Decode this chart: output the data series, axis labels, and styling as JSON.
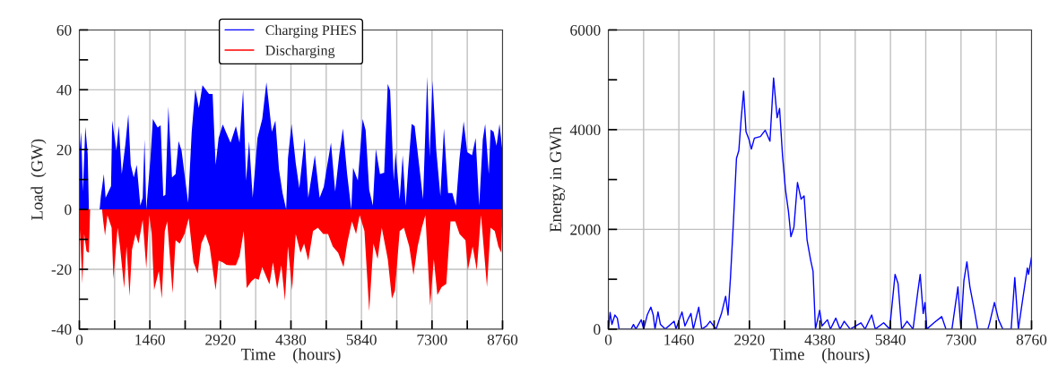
{
  "chart_data": [
    {
      "type": "area",
      "xlabel": "Time    (hours)",
      "ylabel": "Load  (GW)",
      "xlim": [
        0,
        8760
      ],
      "ylim": [
        -40,
        60
      ],
      "xticks": [
        0,
        {
          "value": 730,
          "label": null
        },
        1460,
        {
          "value": 2190,
          "label": null
        },
        2920,
        {
          "value": 3650,
          "label": null
        },
        4380,
        {
          "value": 5110,
          "label": null
        },
        5840,
        {
          "value": 6570,
          "label": null
        },
        7300,
        {
          "value": 8030,
          "label": null
        },
        8760
      ],
      "yticks": [
        -40,
        {
          "value": -30,
          "label": null
        },
        -20,
        {
          "value": -10,
          "label": null
        },
        0,
        {
          "value": 10,
          "label": null
        },
        20,
        {
          "value": 30,
          "label": null
        },
        40,
        {
          "value": 50,
          "label": null
        },
        60
      ],
      "grid": true,
      "legend": "top",
      "series": [
        {
          "name": "Charging PHES",
          "color": "#0000ff",
          "x": [
            0,
            37,
            74,
            124,
            173,
            198,
            420,
            445,
            507,
            544,
            656,
            680,
            767,
            817,
            878,
            953,
            1014,
            1064,
            1126,
            1188,
            1262,
            1311,
            1349,
            1386,
            1472,
            1522,
            1621,
            1683,
            1738,
            1782,
            1843,
            1918,
            1992,
            2054,
            2116,
            2190,
            2252,
            2326,
            2400,
            2474,
            2549,
            2610,
            2685,
            2759,
            2821,
            2883,
            2969,
            3044,
            3130,
            3241,
            3316,
            3390,
            3452,
            3514,
            3588,
            3687,
            3786,
            3872,
            3910,
            3984,
            4058,
            4132,
            4206,
            4281,
            4318,
            4392,
            4479,
            4553,
            4664,
            4738,
            4875,
            4974,
            5060,
            5122,
            5209,
            5295,
            5382,
            5456,
            5543,
            5629,
            5666,
            5765,
            5864,
            5926,
            6000,
            6075,
            6137,
            6223,
            6310,
            6384,
            6433,
            6508,
            6545,
            6631,
            6693,
            6755,
            6805,
            6879,
            6941,
            7040,
            7114,
            7201,
            7250,
            7312,
            7386,
            7473,
            7547,
            7633,
            7720,
            7794,
            7869,
            7955,
            8029,
            8128,
            8203,
            8277,
            8351,
            8401,
            8475,
            8512,
            8574,
            8636,
            8697,
            8760
          ],
          "values": [
            18.1,
            26,
            6,
            27.6,
            18.6,
            0,
            0,
            4.4,
            11.8,
            3.9,
            7.8,
            29.7,
            19.7,
            28,
            11.8,
            21.8,
            31.8,
            14.9,
            10.7,
            14.9,
            1.3,
            3.9,
            23.4,
            0,
            17.1,
            30.2,
            27.4,
            28.1,
            4.4,
            4.9,
            34.4,
            10.7,
            11.8,
            22.8,
            19.7,
            10.2,
            2.3,
            26,
            40.2,
            33.9,
            41.5,
            40.2,
            38.6,
            38.6,
            14.9,
            23.9,
            28.4,
            25.5,
            22.3,
            27.8,
            22.3,
            40.2,
            9.7,
            22.8,
            3.9,
            23.9,
            30.2,
            42.5,
            37.1,
            26,
            29.7,
            13.4,
            5.5,
            0,
            17.1,
            28.6,
            15.5,
            7.1,
            23.9,
            3.9,
            18.1,
            3.9,
            7.6,
            13.9,
            22.3,
            6,
            18.6,
            27.1,
            11.8,
            0,
            13.9,
            9.7,
            30.2,
            26.5,
            6.5,
            1.3,
            20.2,
            11.8,
            12.3,
            42,
            39.7,
            9.7,
            19.2,
            3.4,
            18.1,
            1.3,
            13.4,
            28.6,
            27.8,
            13.9,
            3.4,
            44.4,
            17.6,
            43.1,
            20.2,
            4.4,
            27.1,
            5.5,
            5.5,
            1.3,
            17.1,
            29.4,
            19.2,
            18.1,
            23.9,
            1.3,
            23.4,
            28.6,
            11.8,
            26.7,
            26,
            21.3,
            28.6,
            19.2
          ]
        },
        {
          "name": "Discharging",
          "color": "#ff0000",
          "x": [
            0,
            25,
            62,
            99,
            148,
            198,
            223,
            470,
            495,
            532,
            581,
            668,
            705,
            792,
            841,
            928,
            977,
            1039,
            1089,
            1163,
            1225,
            1311,
            1386,
            1448,
            1497,
            1547,
            1645,
            1707,
            1769,
            1819,
            1930,
            1992,
            2078,
            2178,
            2264,
            2363,
            2450,
            2524,
            2610,
            2697,
            2821,
            2883,
            2969,
            3044,
            3130,
            3241,
            3316,
            3403,
            3464,
            3563,
            3637,
            3712,
            3786,
            3934,
            4008,
            4095,
            4182,
            4256,
            4318,
            4404,
            4479,
            4578,
            4652,
            4738,
            4837,
            4937,
            5048,
            5147,
            5246,
            5357,
            5468,
            5543,
            5642,
            5728,
            5802,
            5901,
            6000,
            6087,
            6174,
            6260,
            6384,
            6470,
            6532,
            6631,
            6718,
            6829,
            6916,
            7003,
            7089,
            7163,
            7262,
            7337,
            7411,
            7497,
            7596,
            7683,
            7782,
            7869,
            7992,
            8042,
            8141,
            8227,
            8314,
            8438,
            8512,
            8599,
            8673,
            8735,
            8760
          ],
          "values": [
            -4,
            -11.4,
            -24.8,
            -8.2,
            -14,
            -14.5,
            0,
            0,
            -4,
            -8.7,
            -1.9,
            -6.1,
            -23.2,
            -6.1,
            -12.4,
            -26.3,
            -12.4,
            -29,
            -13.5,
            -8.2,
            -11.4,
            -3.5,
            -19.8,
            -1.9,
            -8.2,
            -27,
            -20.6,
            -29.8,
            -7.2,
            -4,
            -28,
            -10.3,
            -11.4,
            -8.2,
            -3,
            -17.7,
            -21.4,
            -11.4,
            -8.2,
            -12.4,
            -27,
            -17.1,
            -17.7,
            -18.5,
            -18.7,
            -18.7,
            -15.6,
            -7.2,
            -26.3,
            -24,
            -23,
            -23.5,
            -19.3,
            -25,
            -17.7,
            -26.6,
            -18.7,
            -30.5,
            -12.4,
            -27,
            -8.2,
            -14.5,
            -11.4,
            -17.1,
            -7.2,
            -6.1,
            -8.2,
            -8.2,
            -12.4,
            -14.5,
            -19.3,
            -11.4,
            -4,
            -8.2,
            -1.9,
            -7.2,
            -34,
            -11.4,
            -16.6,
            -6.1,
            -16.6,
            -29.8,
            -27.2,
            -7.2,
            -6.1,
            -12.4,
            -21.9,
            -12.4,
            -6.1,
            -1.9,
            -32.2,
            -16.6,
            -28.6,
            -26,
            -24.9,
            -4,
            -4,
            -8.2,
            -10.3,
            -20.3,
            -12.4,
            -20.3,
            -1.9,
            -25.9,
            -6.1,
            -7.2,
            -12.4,
            -14.5,
            0
          ]
        }
      ]
    },
    {
      "type": "line",
      "xlabel": "Time    (hours)",
      "ylabel": "Energy in GWh",
      "xlim": [
        0,
        8760
      ],
      "ylim": [
        0,
        6000
      ],
      "xticks": [
        0,
        {
          "value": 730,
          "label": null
        },
        1460,
        {
          "value": 2190,
          "label": null
        },
        2920,
        {
          "value": 3650,
          "label": null
        },
        4380,
        {
          "value": 5110,
          "label": null
        },
        5840,
        {
          "value": 6570,
          "label": null
        },
        7300,
        {
          "value": 8030,
          "label": null
        },
        8760
      ],
      "yticks": [
        0,
        {
          "value": 1000,
          "label": null
        },
        2000,
        {
          "value": 3000,
          "label": null
        },
        4000,
        {
          "value": 5000,
          "label": null
        },
        6000
      ],
      "grid": true,
      "series": [
        {
          "color": "#0000ff",
          "x": [
            0,
            37,
            74,
            136,
            186,
            223,
            471,
            520,
            570,
            681,
            731,
            805,
            880,
            929,
            966,
            1028,
            1078,
            1177,
            1363,
            1400,
            1524,
            1586,
            1660,
            1710,
            1759,
            1871,
            1933,
            2032,
            2106,
            2230,
            2342,
            2428,
            2478,
            2528,
            2590,
            2652,
            2701,
            2751,
            2800,
            2850,
            2912,
            2961,
            3023,
            3147,
            3246,
            3345,
            3420,
            3494,
            3544,
            3605,
            3667,
            3729,
            3779,
            3841,
            3915,
            3990,
            4052,
            4113,
            4188,
            4237,
            4287,
            4374,
            4423,
            4535,
            4597,
            4708,
            4795,
            4882,
            5006,
            5229,
            5315,
            5452,
            5526,
            5699,
            5823,
            5935,
            5997,
            6071,
            6183,
            6307,
            6406,
            6455,
            6517,
            6554,
            6592,
            6740,
            6901,
            6988,
            7112,
            7236,
            7298,
            7360,
            7422,
            7484,
            7583,
            7645,
            7855,
            7892,
            7992,
            8078,
            8165,
            8338,
            8413,
            8487,
            8586,
            8673,
            8698,
            8760
          ],
          "values": [
            0,
            333,
            94,
            283,
            220,
            0,
            0,
            94,
            0,
            188,
            0,
            283,
            440,
            283,
            0,
            345,
            94,
            0,
            157,
            0,
            345,
            63,
            220,
            314,
            0,
            440,
            0,
            63,
            157,
            0,
            314,
            659,
            283,
            1036,
            2167,
            3423,
            3580,
            4239,
            4773,
            3956,
            3800,
            3611,
            3831,
            3862,
            3988,
            3768,
            5037,
            4239,
            4427,
            3485,
            2795,
            2355,
            1853,
            2041,
            2939,
            2606,
            2669,
            1790,
            1382,
            1162,
            0,
            377,
            63,
            188,
            0,
            220,
            0,
            157,
            0,
            126,
            0,
            283,
            0,
            126,
            0,
            1099,
            911,
            0,
            157,
            0,
            754,
            1099,
            314,
            534,
            0,
            126,
            251,
            0,
            0,
            848,
            0,
            973,
            1350,
            848,
            345,
            0,
            0,
            126,
            534,
            188,
            0,
            0,
            1036,
            0,
            659,
            1225,
            1099,
            1444
          ]
        }
      ]
    }
  ]
}
